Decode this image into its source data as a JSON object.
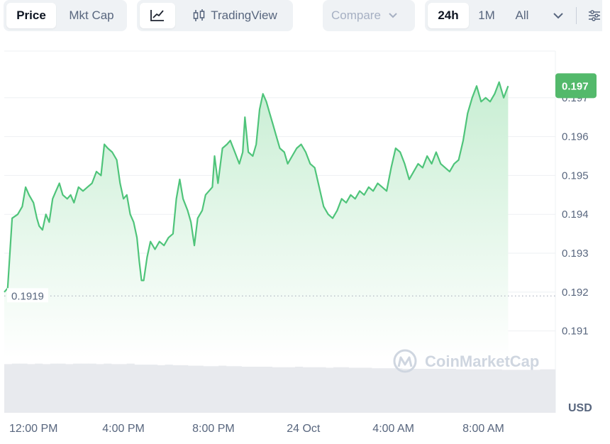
{
  "toolbar": {
    "type_tabs": [
      {
        "label": "Price",
        "active": true
      },
      {
        "label": "Mkt Cap",
        "active": false
      }
    ],
    "view": {
      "line_icon": "line-chart-icon",
      "tradingview_icon": "candlestick-icon",
      "tradingview_label": "TradingView"
    },
    "compare": {
      "label": "Compare",
      "icon": "chevron-down-icon"
    },
    "ranges": [
      {
        "label": "24h",
        "active": true
      },
      {
        "label": "1M",
        "active": false
      },
      {
        "label": "All",
        "active": false
      }
    ],
    "range_more_icon": "chevron-down-icon",
    "settings_icon": "sliders-icon"
  },
  "watermark": "CoinMarketCap",
  "colors": {
    "line": "#4fc47a",
    "area_top": "#c8eed3",
    "area_bottom": "#ffffff",
    "current_badge": "#53b96b",
    "volume": "#e8eaee",
    "grid": "#eef0f3",
    "open_line": "#b8bec8"
  },
  "chart_data": {
    "type": "area",
    "currency": "USD",
    "open_value_label": "0.1919",
    "open_value": 0.1919,
    "current_value_label": "0.197",
    "current_value": 0.1973,
    "y_ticks": [
      "0.197",
      "0.196",
      "0.195",
      "0.194",
      "0.193",
      "0.192",
      "0.191"
    ],
    "y_tick_values": [
      0.197,
      0.196,
      0.195,
      0.194,
      0.193,
      0.192,
      0.191
    ],
    "ylim": [
      0.1903,
      0.1982
    ],
    "x_ticks": [
      "12:00 PM",
      "4:00 PM",
      "8:00 PM",
      "24 Oct",
      "4:00 AM",
      "8:00 AM"
    ],
    "x_tick_hours": [
      1.3,
      5.3,
      9.3,
      13.3,
      17.3,
      21.3
    ],
    "xlim": [
      0,
      24.5
    ],
    "grid": true,
    "series": [
      {
        "points": [
          [
            0.0,
            0.192
          ],
          [
            0.15,
            0.1921
          ],
          [
            0.35,
            0.1939
          ],
          [
            0.6,
            0.194
          ],
          [
            0.8,
            0.1942
          ],
          [
            0.95,
            0.1947
          ],
          [
            1.1,
            0.1945
          ],
          [
            1.3,
            0.1943
          ],
          [
            1.45,
            0.1939
          ],
          [
            1.55,
            0.1937
          ],
          [
            1.7,
            0.1936
          ],
          [
            1.85,
            0.194
          ],
          [
            2.0,
            0.1938
          ],
          [
            2.15,
            0.1944
          ],
          [
            2.3,
            0.1946
          ],
          [
            2.45,
            0.1948
          ],
          [
            2.6,
            0.1945
          ],
          [
            2.8,
            0.1944
          ],
          [
            2.95,
            0.1945
          ],
          [
            3.1,
            0.1943
          ],
          [
            3.3,
            0.1947
          ],
          [
            3.5,
            0.1946
          ],
          [
            3.7,
            0.1947
          ],
          [
            3.9,
            0.1948
          ],
          [
            4.1,
            0.1951
          ],
          [
            4.3,
            0.195
          ],
          [
            4.45,
            0.1958
          ],
          [
            4.6,
            0.1957
          ],
          [
            4.8,
            0.1956
          ],
          [
            5.0,
            0.1954
          ],
          [
            5.15,
            0.1948
          ],
          [
            5.3,
            0.1944
          ],
          [
            5.45,
            0.1945
          ],
          [
            5.6,
            0.194
          ],
          [
            5.75,
            0.1938
          ],
          [
            5.9,
            0.1934
          ],
          [
            6.0,
            0.1928
          ],
          [
            6.1,
            0.1923
          ],
          [
            6.2,
            0.1923
          ],
          [
            6.35,
            0.1929
          ],
          [
            6.5,
            0.1933
          ],
          [
            6.7,
            0.1931
          ],
          [
            6.9,
            0.1933
          ],
          [
            7.1,
            0.1932
          ],
          [
            7.3,
            0.1934
          ],
          [
            7.5,
            0.1935
          ],
          [
            7.65,
            0.1944
          ],
          [
            7.8,
            0.1949
          ],
          [
            7.95,
            0.1944
          ],
          [
            8.15,
            0.1941
          ],
          [
            8.3,
            0.1938
          ],
          [
            8.45,
            0.1932
          ],
          [
            8.6,
            0.1939
          ],
          [
            8.8,
            0.1941
          ],
          [
            8.95,
            0.1945
          ],
          [
            9.1,
            0.1946
          ],
          [
            9.25,
            0.1947
          ],
          [
            9.35,
            0.1955
          ],
          [
            9.5,
            0.1948
          ],
          [
            9.7,
            0.1957
          ],
          [
            9.9,
            0.1958
          ],
          [
            10.05,
            0.1959
          ],
          [
            10.25,
            0.1956
          ],
          [
            10.45,
            0.1953
          ],
          [
            10.6,
            0.1956
          ],
          [
            10.7,
            0.1965
          ],
          [
            10.85,
            0.1956
          ],
          [
            11.05,
            0.1955
          ],
          [
            11.2,
            0.1958
          ],
          [
            11.35,
            0.1967
          ],
          [
            11.5,
            0.1971
          ],
          [
            11.65,
            0.1969
          ],
          [
            11.8,
            0.1966
          ],
          [
            11.95,
            0.1963
          ],
          [
            12.1,
            0.196
          ],
          [
            12.25,
            0.1957
          ],
          [
            12.45,
            0.1956
          ],
          [
            12.6,
            0.1953
          ],
          [
            12.8,
            0.1955
          ],
          [
            13.0,
            0.1957
          ],
          [
            13.2,
            0.1958
          ],
          [
            13.4,
            0.1956
          ],
          [
            13.6,
            0.1953
          ],
          [
            13.8,
            0.1952
          ],
          [
            14.0,
            0.1947
          ],
          [
            14.2,
            0.1942
          ],
          [
            14.4,
            0.194
          ],
          [
            14.6,
            0.1939
          ],
          [
            14.8,
            0.1941
          ],
          [
            15.0,
            0.1944
          ],
          [
            15.2,
            0.1943
          ],
          [
            15.4,
            0.1945
          ],
          [
            15.6,
            0.1944
          ],
          [
            15.8,
            0.1946
          ],
          [
            16.0,
            0.1945
          ],
          [
            16.2,
            0.1947
          ],
          [
            16.4,
            0.1946
          ],
          [
            16.6,
            0.1948
          ],
          [
            16.8,
            0.1947
          ],
          [
            17.0,
            0.1946
          ],
          [
            17.2,
            0.1952
          ],
          [
            17.4,
            0.1957
          ],
          [
            17.6,
            0.1956
          ],
          [
            17.8,
            0.1953
          ],
          [
            18.0,
            0.1949
          ],
          [
            18.2,
            0.1951
          ],
          [
            18.4,
            0.1953
          ],
          [
            18.6,
            0.1952
          ],
          [
            18.8,
            0.1955
          ],
          [
            19.0,
            0.1953
          ],
          [
            19.2,
            0.1956
          ],
          [
            19.4,
            0.1953
          ],
          [
            19.6,
            0.1952
          ],
          [
            19.8,
            0.1951
          ],
          [
            20.0,
            0.1953
          ],
          [
            20.2,
            0.1954
          ],
          [
            20.4,
            0.1959
          ],
          [
            20.6,
            0.1966
          ],
          [
            20.8,
            0.197
          ],
          [
            21.0,
            0.1973
          ],
          [
            21.2,
            0.1969
          ],
          [
            21.4,
            0.197
          ],
          [
            21.6,
            0.1969
          ],
          [
            21.8,
            0.1971
          ],
          [
            22.0,
            0.1974
          ],
          [
            22.2,
            0.197
          ],
          [
            22.4,
            0.1973
          ]
        ]
      }
    ],
    "volume": [
      0.94,
      0.95,
      0.95,
      0.94,
      0.95,
      0.94,
      0.95,
      0.95,
      0.94,
      0.95,
      0.95,
      0.95,
      0.94,
      0.95,
      0.94,
      0.94,
      0.95,
      0.93,
      0.93,
      0.93,
      0.92,
      0.93,
      0.92,
      0.92,
      0.91,
      0.91,
      0.9,
      0.9,
      0.91,
      0.9,
      0.9,
      0.89,
      0.89,
      0.89,
      0.89,
      0.88,
      0.88,
      0.88,
      0.89,
      0.88,
      0.88,
      0.88,
      0.87,
      0.88,
      0.88,
      0.87,
      0.87,
      0.87,
      0.86,
      0.86,
      0.86,
      0.86,
      0.85,
      0.85,
      0.85,
      0.85,
      0.85,
      0.85,
      0.85,
      0.84,
      0.84,
      0.84,
      0.84,
      0.84,
      0.84,
      0.83,
      0.83,
      0.83,
      0.83,
      0.83,
      0.84,
      0.84
    ]
  }
}
